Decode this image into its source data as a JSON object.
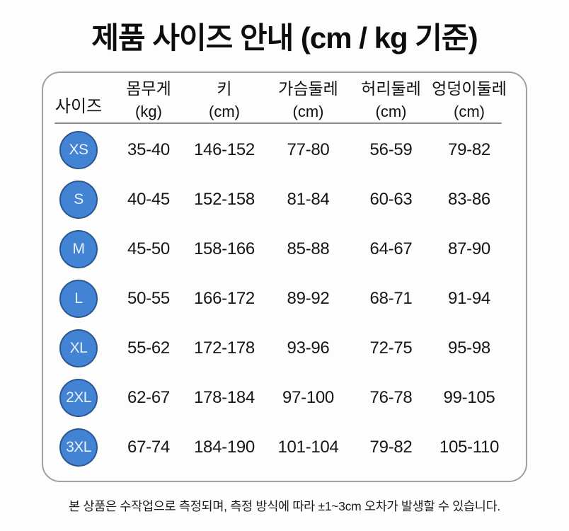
{
  "title": "제품 사이즈 안내 (cm / kg 기준)",
  "colors": {
    "badge_fill": "#4283d3",
    "badge_border": "#2c5694",
    "badge_text": "#eaf1fb",
    "table_border": "#a0a0a0",
    "header_divider": "#8a8a8a",
    "background": "#fdfdfd"
  },
  "chart_data": {
    "type": "table",
    "title": "제품 사이즈 안내 (cm / kg 기준)",
    "size_column_header": "사이즈",
    "columns": [
      {
        "label": "몸무게",
        "unit": "(kg)"
      },
      {
        "label": "키",
        "unit": "(cm)"
      },
      {
        "label": "가슴둘레",
        "unit": "(cm)"
      },
      {
        "label": "허리둘레",
        "unit": "(cm)"
      },
      {
        "label": "엉덩이둘레",
        "unit": "(cm)"
      }
    ],
    "rows": [
      {
        "size": "XS",
        "values": [
          "35-40",
          "146-152",
          "77-80",
          "56-59",
          "79-82"
        ]
      },
      {
        "size": "S",
        "values": [
          "40-45",
          "152-158",
          "81-84",
          "60-63",
          "83-86"
        ]
      },
      {
        "size": "M",
        "values": [
          "45-50",
          "158-166",
          "85-88",
          "64-67",
          "87-90"
        ]
      },
      {
        "size": "L",
        "values": [
          "50-55",
          "166-172",
          "89-92",
          "68-71",
          "91-94"
        ]
      },
      {
        "size": "XL",
        "values": [
          "55-62",
          "172-178",
          "93-96",
          "72-75",
          "95-98"
        ]
      },
      {
        "size": "2XL",
        "values": [
          "62-67",
          "178-184",
          "97-100",
          "76-78",
          "99-105"
        ]
      },
      {
        "size": "3XL",
        "values": [
          "67-74",
          "184-190",
          "101-104",
          "79-82",
          "105-110"
        ]
      }
    ],
    "note": "본 상품은 수작업으로 측정되며, 측정 방식에 따라 ±1~3cm 오차가 발생할 수 있습니다."
  }
}
